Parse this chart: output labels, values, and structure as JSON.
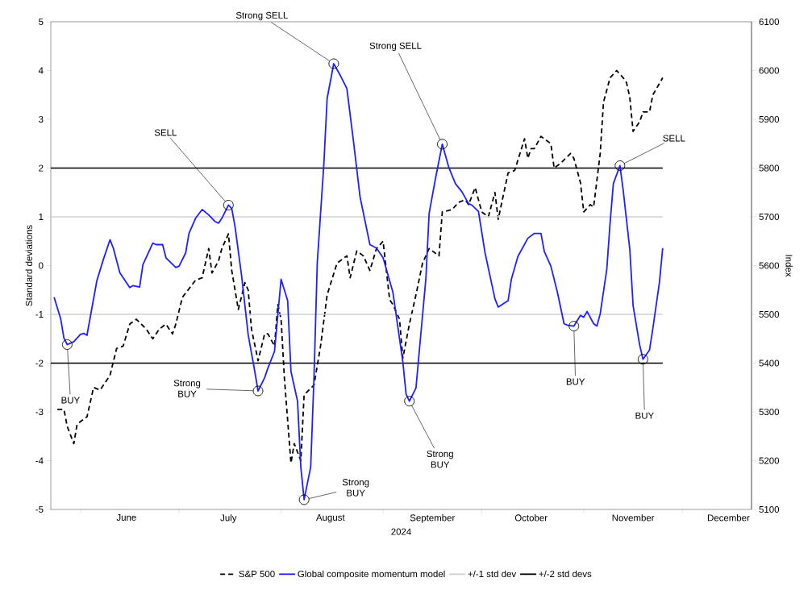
{
  "chart_data": {
    "type": "line",
    "xlabel": "2024",
    "ylabel": "Standard deviations",
    "y2label": "Index",
    "xlim": [
      "2024-05-23",
      "2024-12-22"
    ],
    "xticks": [
      {
        "value": "2024-06-01",
        "label": null
      },
      {
        "value": "2024-07-01",
        "label": null
      },
      {
        "value": "2024-08-01",
        "label": null
      },
      {
        "value": "2024-09-01",
        "label": null
      },
      {
        "value": "2024-10-01",
        "label": null
      },
      {
        "value": "2024-11-01",
        "label": null
      },
      {
        "value": "2024-12-01",
        "label": null
      },
      {
        "value": "2024-06-15",
        "label": "June"
      },
      {
        "value": "2024-07-16",
        "label": "July"
      },
      {
        "value": "2024-08-16",
        "label": "August"
      },
      {
        "value": "2024-09-16",
        "label": "September"
      },
      {
        "value": "2024-10-16",
        "label": "October"
      },
      {
        "value": "2024-11-16",
        "label": "November"
      },
      {
        "value": "2024-12-15",
        "label": "December"
      }
    ],
    "ylim": [
      -5,
      5
    ],
    "yticks": [
      -5,
      -4,
      -3,
      -2,
      -1,
      0,
      1,
      2,
      3,
      4,
      5
    ],
    "y2lim": [
      5100,
      6100
    ],
    "y2ticks": [
      5100,
      5200,
      5300,
      5400,
      5500,
      5600,
      5700,
      5800,
      5900,
      6000,
      6100
    ],
    "legend": "bottom",
    "series": [
      {
        "name": "S&P 500",
        "color": "#000000",
        "axis": "y2",
        "line_style": "dashed",
        "x": [
          "2024-05-25",
          "2024-05-27",
          "2024-05-28",
          "2024-05-30",
          "2024-05-31",
          "2024-06-03",
          "2024-06-05",
          "2024-06-07",
          "2024-06-10",
          "2024-06-12",
          "2024-06-14",
          "2024-06-16",
          "2024-06-18",
          "2024-06-21",
          "2024-06-23",
          "2024-06-25",
          "2024-06-27",
          "2024-06-29",
          "2024-06-30",
          "2024-07-02",
          "2024-07-06",
          "2024-07-08",
          "2024-07-10",
          "2024-07-11",
          "2024-07-13",
          "2024-07-14",
          "2024-07-16",
          "2024-07-17",
          "2024-07-19",
          "2024-07-21",
          "2024-07-22",
          "2024-07-23",
          "2024-07-25",
          "2024-07-27",
          "2024-07-28",
          "2024-07-30",
          "2024-07-31",
          "2024-08-01",
          "2024-08-02",
          "2024-08-04",
          "2024-08-05",
          "2024-08-07",
          "2024-08-08",
          "2024-08-11",
          "2024-08-13",
          "2024-08-15",
          "2024-08-18",
          "2024-08-21",
          "2024-08-22",
          "2024-08-24",
          "2024-08-26",
          "2024-08-28",
          "2024-08-30",
          "2024-09-01",
          "2024-09-03",
          "2024-09-04",
          "2024-09-06",
          "2024-09-07",
          "2024-09-09",
          "2024-09-11",
          "2024-09-13",
          "2024-09-15",
          "2024-09-18",
          "2024-09-19",
          "2024-09-22",
          "2024-09-24",
          "2024-09-26",
          "2024-09-27",
          "2024-09-29",
          "2024-10-01",
          "2024-10-03",
          "2024-10-05",
          "2024-10-06",
          "2024-10-09",
          "2024-10-11",
          "2024-10-14",
          "2024-10-15",
          "2024-10-16",
          "2024-10-17",
          "2024-10-19",
          "2024-10-22",
          "2024-10-23",
          "2024-10-25",
          "2024-10-28",
          "2024-10-29",
          "2024-10-31",
          "2024-11-01",
          "2024-11-03",
          "2024-11-04",
          "2024-11-06",
          "2024-11-07",
          "2024-11-09",
          "2024-11-11",
          "2024-11-13",
          "2024-11-14",
          "2024-11-15",
          "2024-11-16",
          "2024-11-18",
          "2024-11-19",
          "2024-11-21",
          "2024-11-22",
          "2024-11-25"
        ],
        "values": [
          5305,
          5305,
          5270,
          5235,
          5275,
          5290,
          5350,
          5345,
          5375,
          5430,
          5435,
          5480,
          5490,
          5470,
          5450,
          5470,
          5480,
          5460,
          5480,
          5535,
          5570,
          5575,
          5635,
          5585,
          5610,
          5635,
          5665,
          5590,
          5510,
          5565,
          5550,
          5470,
          5405,
          5460,
          5460,
          5435,
          5520,
          5490,
          5370,
          5195,
          5235,
          5200,
          5335,
          5355,
          5435,
          5540,
          5605,
          5620,
          5575,
          5630,
          5620,
          5590,
          5635,
          5650,
          5530,
          5520,
          5490,
          5410,
          5480,
          5540,
          5605,
          5635,
          5620,
          5710,
          5715,
          5730,
          5735,
          5725,
          5760,
          5710,
          5700,
          5750,
          5695,
          5790,
          5795,
          5860,
          5820,
          5840,
          5840,
          5865,
          5850,
          5800,
          5810,
          5830,
          5820,
          5770,
          5710,
          5725,
          5720,
          5830,
          5935,
          5985,
          6000,
          5985,
          5975,
          5945,
          5875,
          5895,
          5915,
          5915,
          5950,
          5985
        ]
      },
      {
        "name": "Global composite momentum model",
        "color": "#1f1fff",
        "line_style": "solid",
        "x": [
          "2024-05-24",
          "2024-05-26",
          "2024-05-27",
          "2024-05-28",
          "2024-05-30",
          "2024-06-01",
          "2024-06-02",
          "2024-06-03",
          "2024-06-06",
          "2024-06-08",
          "2024-06-10",
          "2024-06-11",
          "2024-06-13",
          "2024-06-16",
          "2024-06-17",
          "2024-06-19",
          "2024-06-20",
          "2024-06-23",
          "2024-06-24",
          "2024-06-26",
          "2024-06-27",
          "2024-06-30",
          "2024-07-01",
          "2024-07-03",
          "2024-07-04",
          "2024-07-06",
          "2024-07-08",
          "2024-07-10",
          "2024-07-12",
          "2024-07-13",
          "2024-07-14",
          "2024-07-16",
          "2024-07-17",
          "2024-07-18",
          "2024-07-20",
          "2024-07-22",
          "2024-07-24",
          "2024-07-25",
          "2024-07-27",
          "2024-07-28",
          "2024-07-30",
          "2024-08-01",
          "2024-08-03",
          "2024-08-04",
          "2024-08-06",
          "2024-08-07",
          "2024-08-08",
          "2024-08-10",
          "2024-08-11",
          "2024-08-12",
          "2024-08-14",
          "2024-08-15",
          "2024-08-17",
          "2024-08-19",
          "2024-08-21",
          "2024-08-23",
          "2024-08-25",
          "2024-08-28",
          "2024-08-30",
          "2024-09-01",
          "2024-09-04",
          "2024-09-07",
          "2024-09-08",
          "2024-09-09",
          "2024-09-11",
          "2024-09-12",
          "2024-09-14",
          "2024-09-15",
          "2024-09-17",
          "2024-09-19",
          "2024-09-21",
          "2024-09-23",
          "2024-09-25",
          "2024-09-27",
          "2024-09-28",
          "2024-09-30",
          "2024-10-02",
          "2024-10-05",
          "2024-10-06",
          "2024-10-09",
          "2024-10-10",
          "2024-10-12",
          "2024-10-15",
          "2024-10-17",
          "2024-10-19",
          "2024-10-20",
          "2024-10-22",
          "2024-10-24",
          "2024-10-26",
          "2024-10-27",
          "2024-10-29",
          "2024-10-31",
          "2024-11-01",
          "2024-11-02",
          "2024-11-04",
          "2024-11-05",
          "2024-11-06",
          "2024-11-08",
          "2024-11-09",
          "2024-11-10",
          "2024-11-12",
          "2024-11-13",
          "2024-11-15",
          "2024-11-16",
          "2024-11-18",
          "2024-11-19",
          "2024-11-21",
          "2024-11-22",
          "2024-11-24",
          "2024-11-25"
        ],
        "values": [
          -0.65,
          -1.09,
          -1.49,
          -1.62,
          -1.56,
          -1.41,
          -1.39,
          -1.43,
          -0.31,
          0.13,
          0.53,
          0.36,
          -0.15,
          -0.45,
          -0.41,
          -0.44,
          0.02,
          0.46,
          0.43,
          0.43,
          0.16,
          -0.04,
          -0.01,
          0.26,
          0.66,
          0.97,
          1.15,
          1.04,
          0.9,
          0.87,
          0.97,
          1.24,
          1.17,
          0.8,
          -0.21,
          -1.42,
          -2.17,
          -2.57,
          -2.3,
          -2.1,
          -1.76,
          -0.28,
          -0.72,
          -2.17,
          -2.78,
          -4.13,
          -4.8,
          -4.13,
          -2.3,
          0.06,
          2.08,
          3.43,
          4.14,
          3.9,
          3.63,
          2.55,
          1.41,
          0.43,
          0.36,
          0.16,
          -0.55,
          -1.97,
          -2.64,
          -2.78,
          -2.51,
          -1.76,
          -0.28,
          1.07,
          1.81,
          2.49,
          2.01,
          1.68,
          1.51,
          1.27,
          1.24,
          1.11,
          0.26,
          -0.68,
          -0.85,
          -0.72,
          -0.28,
          0.19,
          0.56,
          0.66,
          0.66,
          0.29,
          -0.01,
          -0.55,
          -1.19,
          -1.22,
          -1.24,
          -1.02,
          -1.06,
          -0.94,
          -1.19,
          -1.24,
          -0.99,
          -0.08,
          0.87,
          1.68,
          2.05,
          1.54,
          0.33,
          -0.82,
          -1.63,
          -1.92,
          -1.73,
          -1.29,
          -0.35,
          0.36
        ]
      }
    ],
    "ref_lines": [
      {
        "axis": "y",
        "value": 1,
        "label": "+/-1 std dev",
        "color": "#d0d0d0"
      },
      {
        "axis": "y",
        "value": -1,
        "color": "#d0d0d0"
      },
      {
        "axis": "y",
        "value": 2,
        "label": "+/-2 std devs",
        "color": "#000000"
      },
      {
        "axis": "y",
        "value": -2,
        "color": "#000000"
      }
    ],
    "annotations": [
      {
        "text": "BUY",
        "x": "2024-05-28",
        "y": -1.62
      },
      {
        "text": "SELL",
        "x": "2024-07-16",
        "y": 1.24
      },
      {
        "text": "Strong BUY",
        "x": "2024-07-25",
        "y": -2.57
      },
      {
        "text": "Strong BUY",
        "x": "2024-08-08",
        "y": -4.8
      },
      {
        "text": "Strong SELL",
        "x": "2024-08-17",
        "y": 4.14
      },
      {
        "text": "Strong BUY",
        "x": "2024-09-09",
        "y": -2.78
      },
      {
        "text": "Strong SELL",
        "x": "2024-09-19",
        "y": 2.49
      },
      {
        "text": "BUY",
        "x": "2024-10-29",
        "y": -1.24
      },
      {
        "text": "SELL",
        "x": "2024-11-12",
        "y": 2.05
      },
      {
        "text": "BUY",
        "x": "2024-11-19",
        "y": -1.92
      }
    ]
  }
}
